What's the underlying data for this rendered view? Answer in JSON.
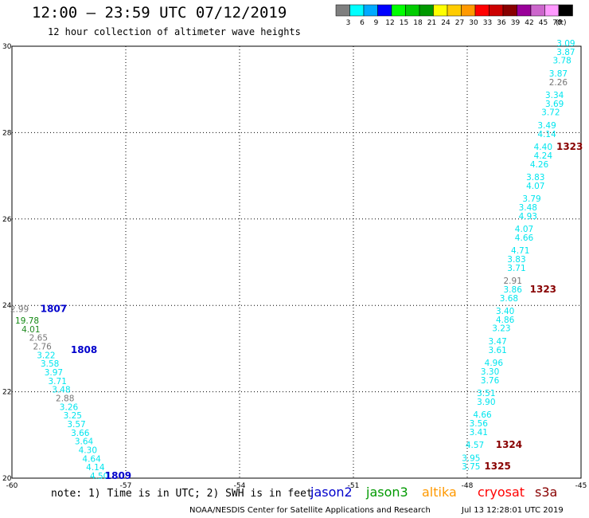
{
  "header": {
    "title": "12:00 – 23:59 UTC 07/12/2019",
    "subtitle": "12 hour collection of altimeter wave heights"
  },
  "legend": {
    "unit": "(ft)",
    "bins": [
      {
        "label": "3",
        "color": "#7f7f7f"
      },
      {
        "label": "6",
        "color": "#00ffff"
      },
      {
        "label": "9",
        "color": "#00aaff"
      },
      {
        "label": "12",
        "color": "#0000ff"
      },
      {
        "label": "15",
        "color": "#00ff00"
      },
      {
        "label": "18",
        "color": "#00cc00"
      },
      {
        "label": "21",
        "color": "#009900"
      },
      {
        "label": "24",
        "color": "#ffff00"
      },
      {
        "label": "27",
        "color": "#ffcc00"
      },
      {
        "label": "30",
        "color": "#ff9900"
      },
      {
        "label": "33",
        "color": "#ff0000"
      },
      {
        "label": "36",
        "color": "#cc0000"
      },
      {
        "label": "39",
        "color": "#880000"
      },
      {
        "label": "42",
        "color": "#990099"
      },
      {
        "label": "45",
        "color": "#cc66cc"
      },
      {
        "label": "70",
        "color": "#ff99ff"
      },
      {
        "label": "",
        "color": "#000000"
      }
    ]
  },
  "footer": {
    "note": "note: 1) Time is in UTC; 2) SWH is in feet",
    "credit": "NOAA/NESDIS Center for Satellite Applications and Research",
    "timestamp": "Jul 13 12:28:01 UTC 2019",
    "satellites": [
      {
        "name": "jason2",
        "color": "#0000cc"
      },
      {
        "name": "jason3",
        "color": "#009900"
      },
      {
        "name": "altika",
        "color": "#ff9900"
      },
      {
        "name": "cryosat",
        "color": "#ff0000"
      },
      {
        "name": "s3a",
        "color": "#880000"
      }
    ]
  },
  "chart_data": {
    "type": "scatter",
    "xlim": [
      -60,
      -45
    ],
    "ylim": [
      20,
      30
    ],
    "x_ticks": [
      -60,
      -57,
      -54,
      -51,
      -48,
      -45
    ],
    "x_tick_labels": [
      "-60",
      "-57",
      "-54",
      "-51",
      "-48",
      "-45"
    ],
    "y_ticks": [
      20,
      22,
      24,
      26,
      28,
      30
    ],
    "y_tick_labels": [
      "20",
      "22",
      "24",
      "26",
      "28",
      "30"
    ],
    "grid": true,
    "colors": {
      "cyan": "#00e5ee",
      "grey": "#777777",
      "green": "#228b22",
      "darkgreen": "#118811",
      "blue": "#0000cc",
      "darkred": "#880000"
    },
    "tracks": [
      {
        "name": "left track",
        "points": [
          {
            "x": -59.8,
            "y": 23.85,
            "label": "2.99",
            "color": "grey"
          },
          {
            "x": -59.6,
            "y": 23.58,
            "label": "19.78",
            "color": "darkgreen"
          },
          {
            "x": -59.5,
            "y": 23.38,
            "label": "4.01",
            "color": "green"
          },
          {
            "x": -59.3,
            "y": 23.18,
            "label": "2.65",
            "color": "grey"
          },
          {
            "x": -59.2,
            "y": 22.98,
            "label": "2.76",
            "color": "grey"
          },
          {
            "x": -59.1,
            "y": 22.78,
            "label": "3.22",
            "color": "cyan"
          },
          {
            "x": -59.0,
            "y": 22.58,
            "label": "3.58",
            "color": "cyan"
          },
          {
            "x": -58.9,
            "y": 22.38,
            "label": "3.97",
            "color": "cyan"
          },
          {
            "x": -58.8,
            "y": 22.18,
            "label": "3.71",
            "color": "cyan"
          },
          {
            "x": -58.7,
            "y": 21.98,
            "label": "3.48",
            "color": "cyan"
          },
          {
            "x": -58.6,
            "y": 21.78,
            "label": "2.88",
            "color": "grey"
          },
          {
            "x": -58.5,
            "y": 21.58,
            "label": "3.26",
            "color": "cyan"
          },
          {
            "x": -58.4,
            "y": 21.38,
            "label": "3.25",
            "color": "cyan"
          },
          {
            "x": -58.3,
            "y": 21.18,
            "label": "3.57",
            "color": "cyan"
          },
          {
            "x": -58.2,
            "y": 20.98,
            "label": "3.66",
            "color": "cyan"
          },
          {
            "x": -58.1,
            "y": 20.78,
            "label": "3.64",
            "color": "cyan"
          },
          {
            "x": -58.0,
            "y": 20.58,
            "label": "4.30",
            "color": "cyan"
          },
          {
            "x": -57.9,
            "y": 20.38,
            "label": "4.64",
            "color": "cyan"
          },
          {
            "x": -57.8,
            "y": 20.18,
            "label": "4.14",
            "color": "cyan"
          },
          {
            "x": -57.7,
            "y": 19.98,
            "label": "4.50",
            "color": "cyan"
          }
        ]
      },
      {
        "name": "right track",
        "points": [
          {
            "x": -45.4,
            "y": 30.0,
            "label": "3.09",
            "color": "cyan"
          },
          {
            "x": -45.4,
            "y": 29.8,
            "label": "3.87",
            "color": "cyan"
          },
          {
            "x": -45.5,
            "y": 29.6,
            "label": "3.78",
            "color": "cyan"
          },
          {
            "x": -45.6,
            "y": 29.3,
            "label": "3.87",
            "color": "cyan"
          },
          {
            "x": -45.6,
            "y": 29.1,
            "label": "2.26",
            "color": "grey"
          },
          {
            "x": -45.7,
            "y": 28.8,
            "label": "3.34",
            "color": "cyan"
          },
          {
            "x": -45.7,
            "y": 28.6,
            "label": "3.69",
            "color": "cyan"
          },
          {
            "x": -45.8,
            "y": 28.4,
            "label": "3.72",
            "color": "cyan"
          },
          {
            "x": -45.9,
            "y": 28.1,
            "label": "3.49",
            "color": "cyan"
          },
          {
            "x": -45.9,
            "y": 27.9,
            "label": "4.14",
            "color": "cyan"
          },
          {
            "x": -46.0,
            "y": 27.6,
            "label": "4.40",
            "color": "cyan"
          },
          {
            "x": -46.0,
            "y": 27.4,
            "label": "4.24",
            "color": "cyan"
          },
          {
            "x": -46.1,
            "y": 27.2,
            "label": "4.26",
            "color": "cyan"
          },
          {
            "x": -46.2,
            "y": 26.9,
            "label": "3.83",
            "color": "cyan"
          },
          {
            "x": -46.2,
            "y": 26.7,
            "label": "4.07",
            "color": "cyan"
          },
          {
            "x": -46.3,
            "y": 26.4,
            "label": "3.79",
            "color": "cyan"
          },
          {
            "x": -46.4,
            "y": 26.2,
            "label": "3.48",
            "color": "cyan"
          },
          {
            "x": -46.4,
            "y": 26.0,
            "label": "4.93",
            "color": "cyan"
          },
          {
            "x": -46.5,
            "y": 25.7,
            "label": "4.07",
            "color": "cyan"
          },
          {
            "x": -46.5,
            "y": 25.5,
            "label": "4.66",
            "color": "cyan"
          },
          {
            "x": -46.6,
            "y": 25.2,
            "label": "4.71",
            "color": "cyan"
          },
          {
            "x": -46.7,
            "y": 25.0,
            "label": "3.83",
            "color": "cyan"
          },
          {
            "x": -46.7,
            "y": 24.8,
            "label": "3.71",
            "color": "cyan"
          },
          {
            "x": -46.8,
            "y": 24.5,
            "label": "2.91",
            "color": "grey"
          },
          {
            "x": -46.8,
            "y": 24.3,
            "label": "3.86",
            "color": "cyan"
          },
          {
            "x": -46.9,
            "y": 24.1,
            "label": "3.68",
            "color": "cyan"
          },
          {
            "x": -47.0,
            "y": 23.8,
            "label": "3.40",
            "color": "cyan"
          },
          {
            "x": -47.0,
            "y": 23.6,
            "label": "4.86",
            "color": "cyan"
          },
          {
            "x": -47.1,
            "y": 23.4,
            "label": "3.23",
            "color": "cyan"
          },
          {
            "x": -47.2,
            "y": 23.1,
            "label": "3.47",
            "color": "cyan"
          },
          {
            "x": -47.2,
            "y": 22.9,
            "label": "3.61",
            "color": "cyan"
          },
          {
            "x": -47.3,
            "y": 22.6,
            "label": "4.96",
            "color": "cyan"
          },
          {
            "x": -47.4,
            "y": 22.4,
            "label": "3.30",
            "color": "cyan"
          },
          {
            "x": -47.4,
            "y": 22.2,
            "label": "3.76",
            "color": "cyan"
          },
          {
            "x": -47.5,
            "y": 21.9,
            "label": "3.51",
            "color": "cyan"
          },
          {
            "x": -47.5,
            "y": 21.7,
            "label": "3.90",
            "color": "cyan"
          },
          {
            "x": -47.6,
            "y": 21.4,
            "label": "4.66",
            "color": "cyan"
          },
          {
            "x": -47.7,
            "y": 21.2,
            "label": "3.56",
            "color": "cyan"
          },
          {
            "x": -47.7,
            "y": 21.0,
            "label": "3.41",
            "color": "cyan"
          },
          {
            "x": -47.8,
            "y": 20.7,
            "label": "4.57",
            "color": "cyan"
          },
          {
            "x": -47.9,
            "y": 20.4,
            "label": "3.95",
            "color": "cyan"
          },
          {
            "x": -47.9,
            "y": 20.2,
            "label": "3.75",
            "color": "cyan"
          }
        ]
      }
    ],
    "time_labels": [
      {
        "x": -58.9,
        "y": 23.85,
        "label": "1807",
        "color": "blue"
      },
      {
        "x": -58.1,
        "y": 22.9,
        "label": "1808",
        "color": "blue"
      },
      {
        "x": -57.2,
        "y": 19.98,
        "label": "1809",
        "color": "blue"
      },
      {
        "x": -45.3,
        "y": 27.6,
        "label": "1323",
        "color": "darkred"
      },
      {
        "x": -46.0,
        "y": 24.3,
        "label": "1323",
        "color": "darkred"
      },
      {
        "x": -46.9,
        "y": 20.7,
        "label": "1324",
        "color": "darkred"
      },
      {
        "x": -47.2,
        "y": 20.2,
        "label": "1325",
        "color": "darkred"
      }
    ]
  }
}
